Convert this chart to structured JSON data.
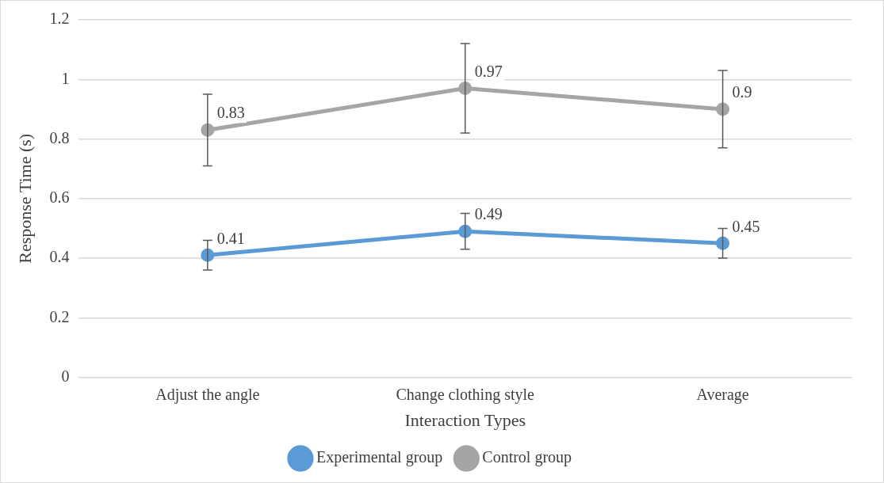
{
  "chart_data": {
    "type": "line",
    "xlabel": "Interaction Types",
    "ylabel": "Response Time (s)",
    "categories": [
      "Adjust the angle",
      "Change clothing style",
      "Average"
    ],
    "series": [
      {
        "name": "Experimental group",
        "color": "#5b9bd5",
        "values": [
          0.41,
          0.49,
          0.45
        ],
        "errors": [
          0.05,
          0.06,
          0.05
        ]
      },
      {
        "name": "Control group",
        "color": "#a5a5a5",
        "values": [
          0.83,
          0.97,
          0.9
        ],
        "errors": [
          0.12,
          0.15,
          0.13
        ]
      }
    ],
    "ylim": [
      0,
      1.2
    ],
    "yticks": [
      0,
      0.2,
      0.4,
      0.6,
      0.8,
      1,
      1.2
    ],
    "grid": "y",
    "legend": "bottom",
    "marker": "circle",
    "line_style": "solid",
    "data_labels": true
  }
}
